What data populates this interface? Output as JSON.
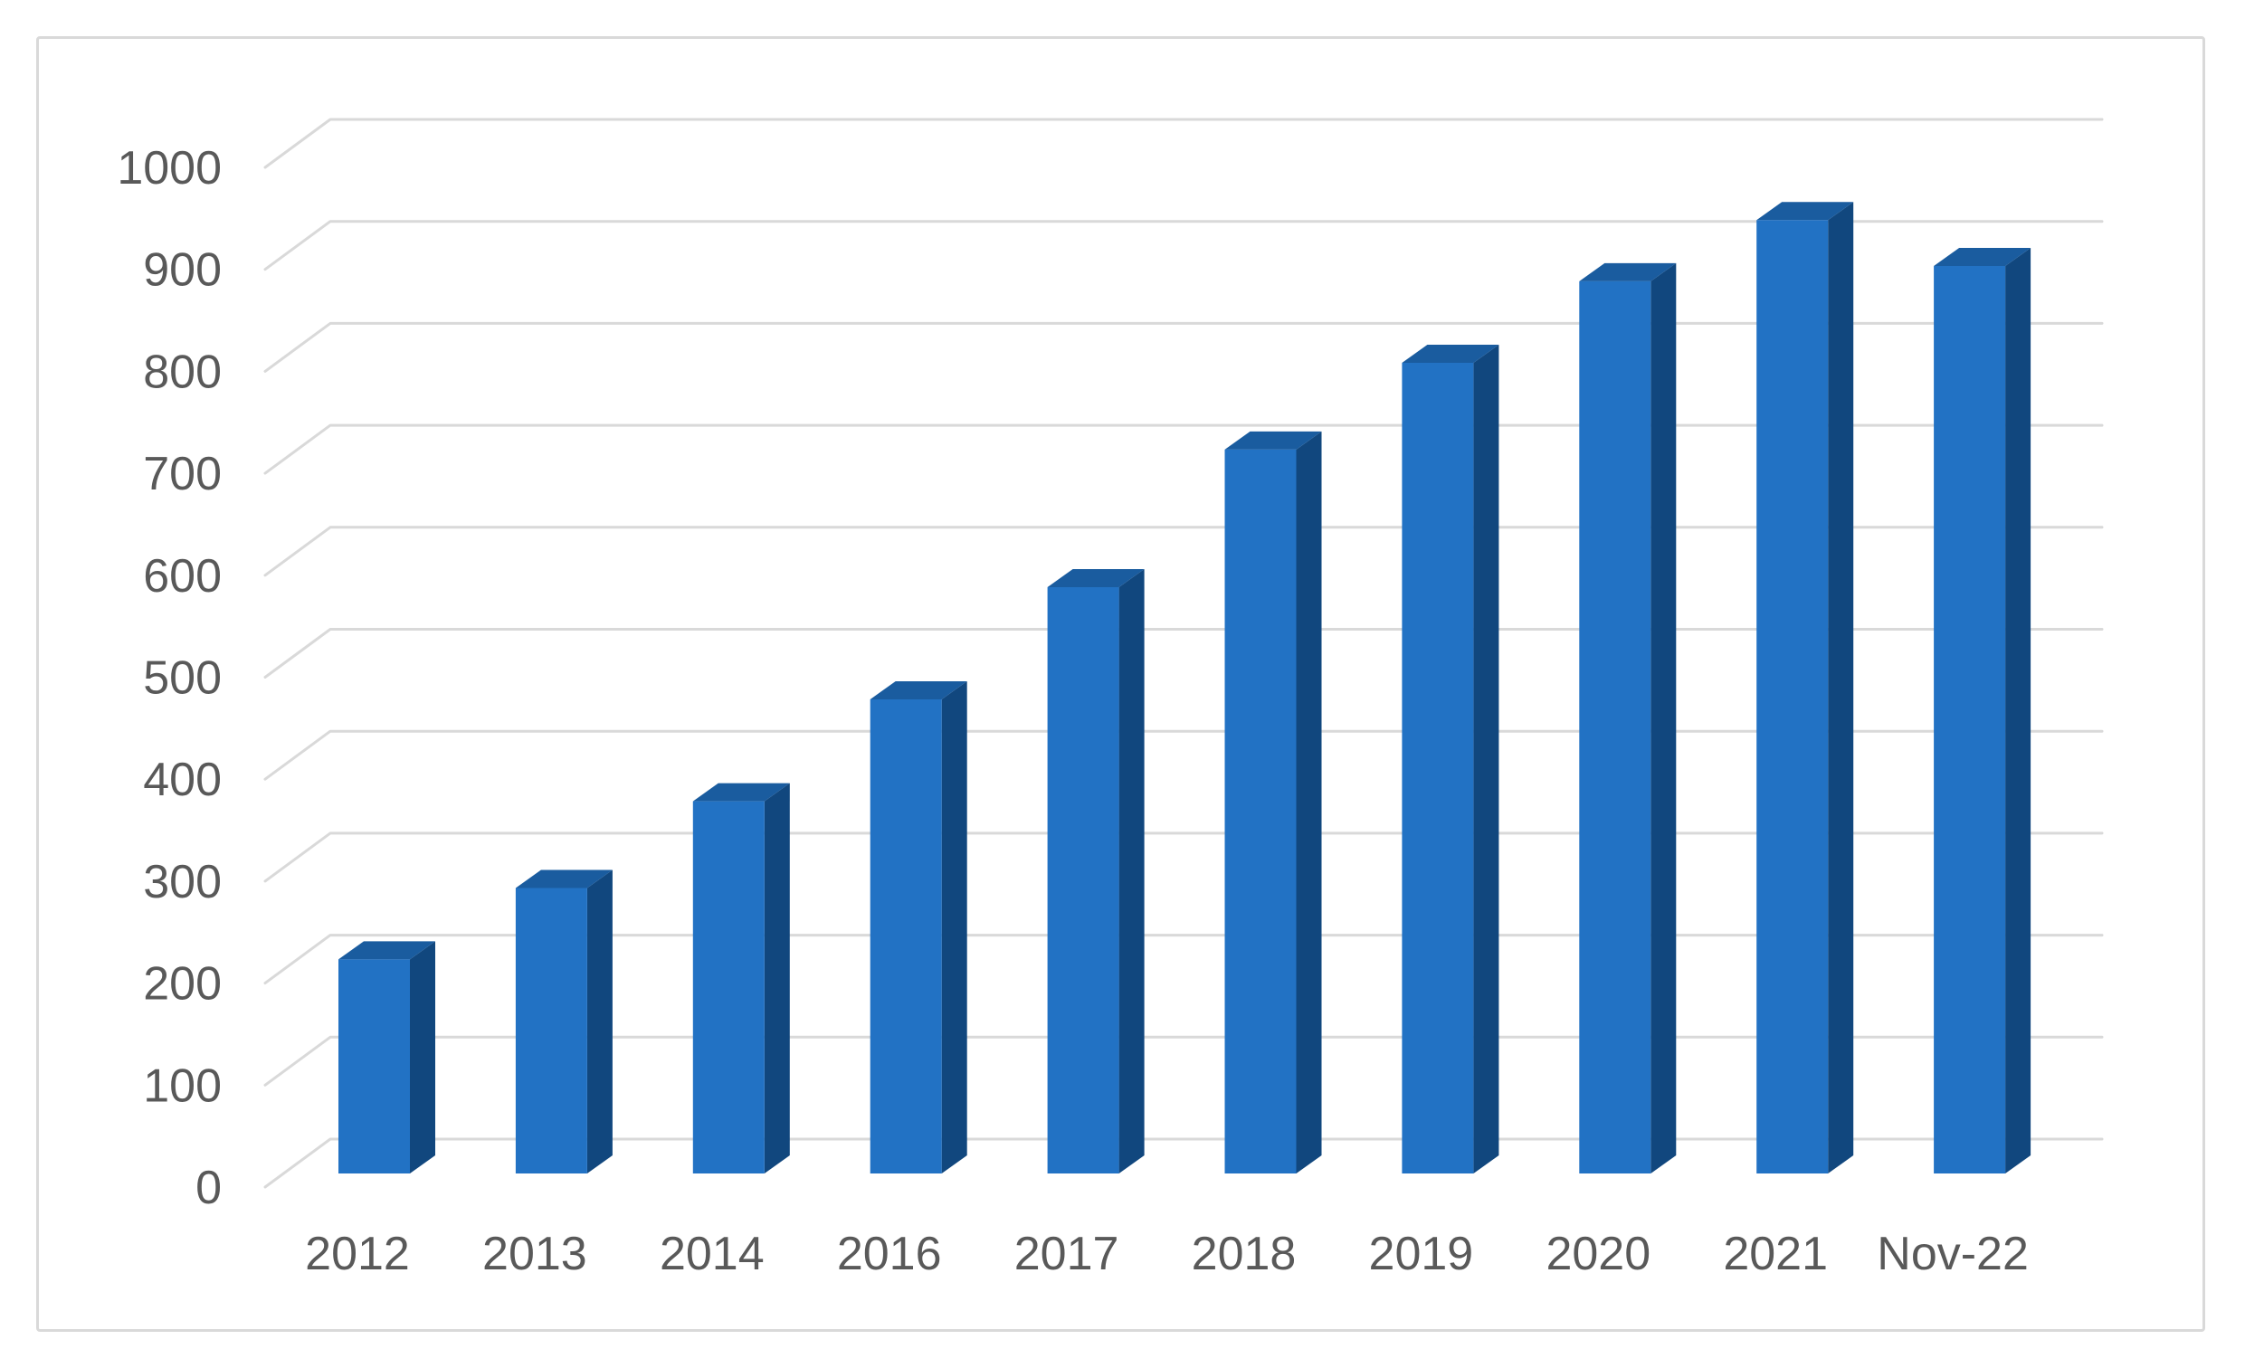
{
  "chart_data": {
    "type": "bar",
    "variant": "3d-clustered-column",
    "title": "",
    "xlabel": "",
    "ylabel": "",
    "categories": [
      "2012",
      "2013",
      "2014",
      "2016",
      "2017",
      "2018",
      "2019",
      "2020",
      "2021",
      "Nov-22"
    ],
    "values": [
      210,
      280,
      365,
      465,
      575,
      710,
      795,
      875,
      935,
      890
    ],
    "series": [
      {
        "name": "",
        "values": [
          210,
          280,
          365,
          465,
          575,
          710,
          795,
          875,
          935,
          890
        ]
      }
    ],
    "ylim": [
      0,
      1000
    ],
    "ytick_step": 100,
    "ytick_labels": [
      "0",
      "100",
      "200",
      "300",
      "400",
      "500",
      "600",
      "700",
      "800",
      "900",
      "1000"
    ],
    "grid": true,
    "legend": false,
    "colors": {
      "bar_front": "#2272C4",
      "bar_top": "#1A5C9F",
      "bar_side": "#11477E",
      "gridline": "#D9D9D9",
      "axis_text": "#595959",
      "frame_border": "#D9D9D9",
      "background": "#FFFFFF"
    }
  }
}
